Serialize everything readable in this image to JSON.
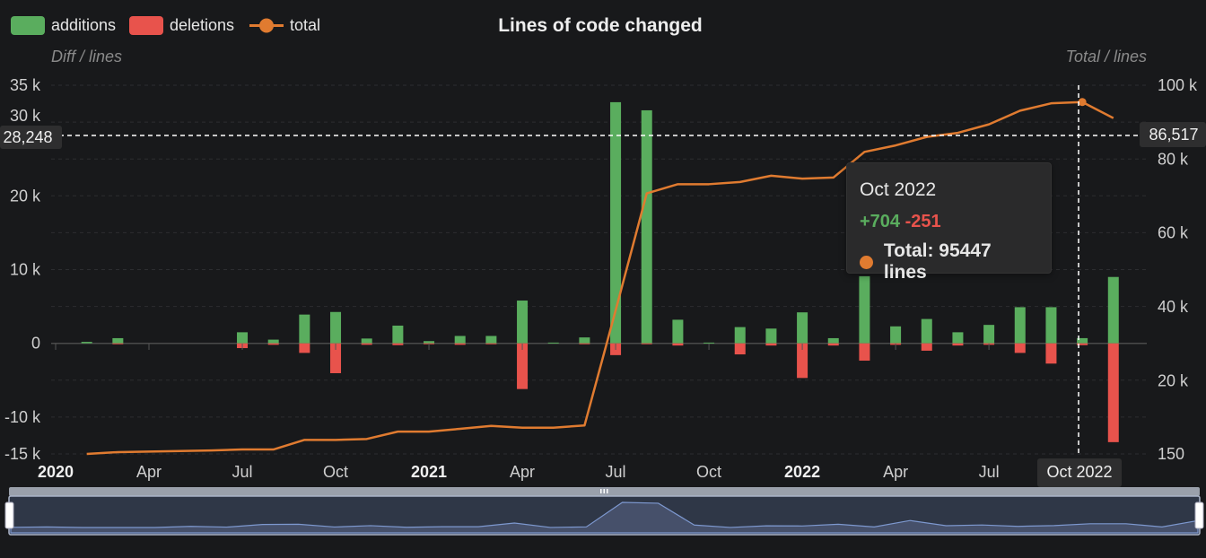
{
  "chart_data": {
    "type": "bar",
    "title": "Lines of code changed",
    "legend": {
      "placement": "top-left",
      "entries": [
        "additions",
        "deletions",
        "total"
      ]
    },
    "y_left": {
      "name": "Diff / lines",
      "min": -15000,
      "max": 35000,
      "ticks": [
        {
          "v": 35000,
          "label": "35 k"
        },
        {
          "v": 30000,
          "label": "30 k"
        },
        {
          "v": 20000,
          "label": "20 k"
        },
        {
          "v": 10000,
          "label": "10 k"
        },
        {
          "v": 0,
          "label": "0"
        },
        {
          "v": -10000,
          "label": "-10 k"
        },
        {
          "v": -15000,
          "label": "-15 k"
        }
      ]
    },
    "y_right": {
      "name": "Total / lines",
      "min": 150,
      "max": 100000,
      "ticks": [
        {
          "v": 100000,
          "label": "100 k"
        },
        {
          "v": 80000,
          "label": "80 k"
        },
        {
          "v": 60000,
          "label": "60 k"
        },
        {
          "v": 40000,
          "label": "40 k"
        },
        {
          "v": 20000,
          "label": "20 k"
        },
        {
          "v": 150,
          "label": "150"
        }
      ]
    },
    "x_ticks": [
      {
        "m": 0,
        "label": "2020",
        "bold": true
      },
      {
        "m": 3,
        "label": "Apr"
      },
      {
        "m": 6,
        "label": "Jul"
      },
      {
        "m": 9,
        "label": "Oct"
      },
      {
        "m": 12,
        "label": "2021",
        "bold": true
      },
      {
        "m": 15,
        "label": "Apr"
      },
      {
        "m": 18,
        "label": "Jul"
      },
      {
        "m": 21,
        "label": "Oct"
      },
      {
        "m": 24,
        "label": "2022",
        "bold": true
      },
      {
        "m": 27,
        "label": "Apr"
      },
      {
        "m": 30,
        "label": "Jul"
      }
    ],
    "grid": true,
    "months": [
      "2020-02",
      "2020-03",
      "2020-04",
      "2020-05",
      "2020-06",
      "2020-07",
      "2020-08",
      "2020-09",
      "2020-10",
      "2020-11",
      "2020-12",
      "2021-01",
      "2021-02",
      "2021-03",
      "2021-04",
      "2021-05",
      "2021-06",
      "2021-07",
      "2021-08",
      "2021-09",
      "2021-10",
      "2021-11",
      "2021-12",
      "2022-01",
      "2022-02",
      "2022-03",
      "2022-04",
      "2022-05",
      "2022-06",
      "2022-07",
      "2022-08",
      "2022-09",
      "2022-10",
      "2022-11"
    ],
    "series": [
      {
        "name": "additions",
        "type": "bar",
        "values": [
          200,
          700,
          0,
          0,
          0,
          1500,
          500,
          3900,
          4250,
          650,
          2400,
          300,
          1000,
          1000,
          5800,
          100,
          800,
          32700,
          31600,
          3200,
          100,
          2200,
          2000,
          4200,
          700,
          9100,
          2300,
          3300,
          1500,
          2500,
          4900,
          4900,
          704,
          9000
        ]
      },
      {
        "name": "deletions",
        "type": "bar",
        "values": [
          0,
          100,
          0,
          0,
          0,
          650,
          200,
          1300,
          4050,
          200,
          250,
          100,
          200,
          100,
          6200,
          0,
          100,
          1600,
          50,
          300,
          0,
          1500,
          300,
          4700,
          300,
          2350,
          200,
          1000,
          300,
          200,
          1300,
          2750,
          251,
          13400
        ]
      },
      {
        "name": "total",
        "type": "line",
        "values": [
          150,
          640,
          800,
          950,
          1100,
          1360,
          1360,
          3960,
          3960,
          4200,
          6200,
          6200,
          6950,
          7750,
          7270,
          7270,
          7850,
          39000,
          70700,
          73200,
          73200,
          73800,
          75500,
          74700,
          75000,
          81950,
          83700,
          86000,
          87100,
          89400,
          93100,
          95100,
          95447,
          91100
        ]
      }
    ],
    "colors": {
      "additions": "#5aad5e",
      "deletions": "#e8534c",
      "total": "#e07b30",
      "background": "#18191b"
    },
    "crosshair": {
      "left_value": "28,248",
      "right_value": "86,517",
      "x_label": "Oct 2022"
    },
    "tooltip": {
      "title": "Oct 2022",
      "additions": "+704",
      "deletions": "-251",
      "total": "Total: 95447 lines"
    }
  },
  "data_zoom": {
    "start_percent": 0,
    "end_percent": 100
  }
}
